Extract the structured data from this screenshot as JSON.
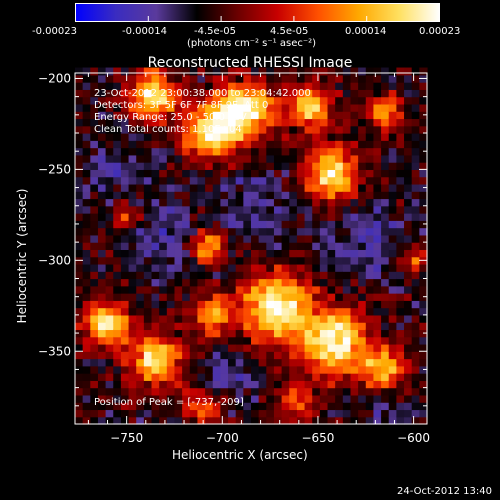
{
  "colorbar": {
    "tick_labels": [
      "-0.00023",
      "-0.00014",
      "-4.5e-05",
      "4.5e-05",
      "0.00014",
      "0.00023"
    ],
    "units": "(photons cm⁻² s⁻¹ asec⁻²)",
    "range": [
      -0.00023,
      0.00023
    ],
    "colormap": [
      "#0000ff",
      "#3a2cc0",
      "#5a3a9c",
      "#000000",
      "#6a0000",
      "#c80000",
      "#ff5000",
      "#ffa800",
      "#ffe060",
      "#ffffff"
    ]
  },
  "chart_data": {
    "type": "heatmap",
    "title": "Reconstructed RHESSI Image",
    "xlabel": "Heliocentric X (arcsec)",
    "ylabel": "Heliocentric Y (arcsec)",
    "xlim": [
      -777,
      -593
    ],
    "ylim": [
      -390,
      -197
    ],
    "x_ticks": [
      -750,
      -700,
      -650,
      -600
    ],
    "y_ticks": [
      -200,
      -250,
      -300,
      -350
    ],
    "info": [
      "23-Oct-2012 23:00:38.000 to 23:04:42.000",
      "Detectors: 3F 5F 6F 7F 8F 9F, Att 0",
      "Energy Range: 25.0 - 50.0 keV",
      "Clean     Total counts: 1.10E+04"
    ],
    "annotation": "Position of Peak = [-737,-209]",
    "peak": [
      -737,
      -209
    ],
    "hot_regions": [
      {
        "x": -737,
        "y": -209,
        "r": 12,
        "strength": 1.0
      },
      {
        "x": -705,
        "y": -228,
        "r": 16,
        "strength": 0.9
      },
      {
        "x": -688,
        "y": -217,
        "r": 14,
        "strength": 0.95
      },
      {
        "x": -655,
        "y": -215,
        "r": 12,
        "strength": 0.8
      },
      {
        "x": -643,
        "y": -252,
        "r": 14,
        "strength": 0.95
      },
      {
        "x": -615,
        "y": -218,
        "r": 10,
        "strength": 0.6
      },
      {
        "x": -708,
        "y": -292,
        "r": 9,
        "strength": 0.75
      },
      {
        "x": -750,
        "y": -276,
        "r": 7,
        "strength": 0.45
      },
      {
        "x": -672,
        "y": -325,
        "r": 18,
        "strength": 1.0
      },
      {
        "x": -642,
        "y": -345,
        "r": 18,
        "strength": 1.0
      },
      {
        "x": -615,
        "y": -360,
        "r": 12,
        "strength": 0.7
      },
      {
        "x": -760,
        "y": -335,
        "r": 12,
        "strength": 0.85
      },
      {
        "x": -735,
        "y": -355,
        "r": 14,
        "strength": 0.85
      },
      {
        "x": -705,
        "y": -330,
        "r": 10,
        "strength": 0.7
      },
      {
        "x": -710,
        "y": -380,
        "r": 10,
        "strength": 0.65
      },
      {
        "x": -660,
        "y": -378,
        "r": 9,
        "strength": 0.55
      },
      {
        "x": -600,
        "y": -300,
        "r": 7,
        "strength": 0.5
      }
    ],
    "cold_regions": [
      {
        "x": -730,
        "y": -290,
        "r": 18,
        "strength": 0.9
      },
      {
        "x": -680,
        "y": -270,
        "r": 22,
        "strength": 0.75
      },
      {
        "x": -625,
        "y": -290,
        "r": 20,
        "strength": 0.8
      },
      {
        "x": -700,
        "y": -365,
        "r": 15,
        "strength": 0.8
      },
      {
        "x": -755,
        "y": -250,
        "r": 14,
        "strength": 0.7
      },
      {
        "x": -615,
        "y": -385,
        "r": 12,
        "strength": 0.6
      }
    ]
  },
  "footer": {
    "date": "24-Oct-2012 13:40"
  }
}
